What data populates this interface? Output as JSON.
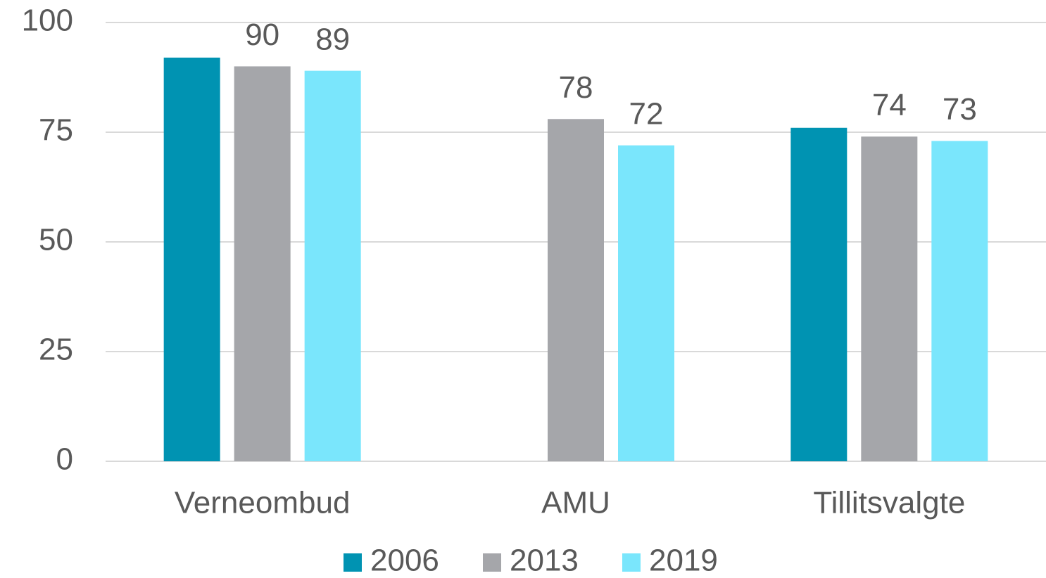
{
  "chart_data": {
    "type": "bar",
    "categories": [
      "Verneombud",
      "AMU",
      "Tillitsvalgte"
    ],
    "series": [
      {
        "name": "2006",
        "color": "#0093b2",
        "values": [
          92,
          null,
          76
        ],
        "data_labels": false
      },
      {
        "name": "2013",
        "color": "#a5a6aa",
        "values": [
          90,
          78,
          74
        ],
        "data_labels": true
      },
      {
        "name": "2019",
        "color": "#7ae6fc",
        "values": [
          89,
          72,
          73
        ],
        "data_labels": true
      }
    ],
    "ylim": [
      0,
      100
    ],
    "yticks": [
      0,
      25,
      50,
      75,
      100
    ],
    "grid": true,
    "legend": "bottom"
  }
}
